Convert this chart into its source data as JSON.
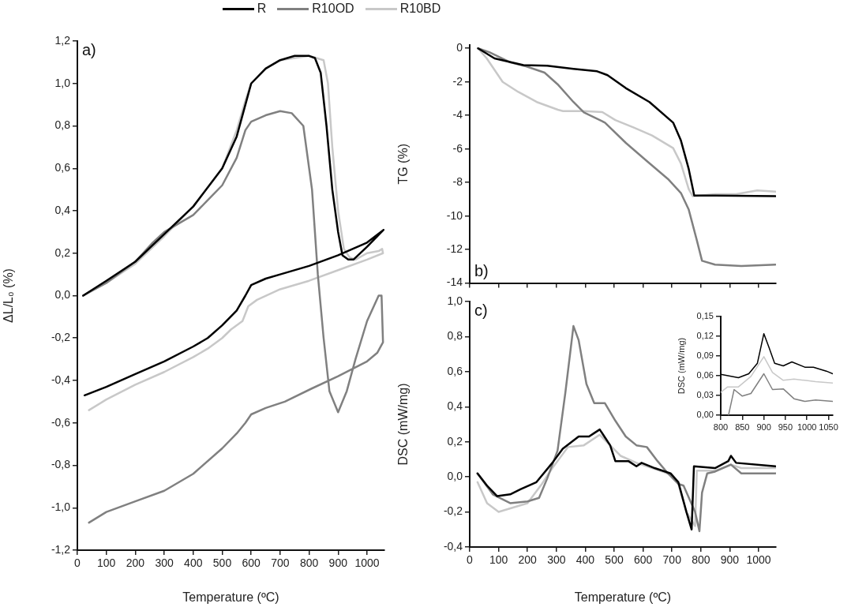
{
  "chart_data": [
    {
      "type": "line",
      "xlabel": "Temperature (ºC)",
      "ylabel": "ΔL/L₀ (%)",
      "legend": "top",
      "annotations": [
        "a)"
      ],
      "xlim": [
        0,
        1060
      ],
      "xticks": [
        0,
        100,
        200,
        300,
        400,
        500,
        600,
        700,
        800,
        900,
        1000
      ],
      "ylim": [
        -1.2,
        1.2
      ],
      "yticks": [
        {
          "value": -1.2,
          "label": "-1,2"
        },
        {
          "value": -1.0,
          "label": "-1,0"
        },
        {
          "value": -0.8,
          "label": "-0,8"
        },
        {
          "value": -0.6,
          "label": "-0,6"
        },
        {
          "value": -0.4,
          "label": "-0,4"
        },
        {
          "value": -0.2,
          "label": "-0,2"
        },
        {
          "value": 0,
          "label": "0,0"
        },
        {
          "value": 0.2,
          "label": "0,2"
        },
        {
          "value": 0.4,
          "label": "0,4"
        },
        {
          "value": 0.6,
          "label": "0,6"
        },
        {
          "value": 0.8,
          "label": "0,8"
        },
        {
          "value": 1.0,
          "label": "1,0"
        },
        {
          "value": 1.2,
          "label": "1,2"
        }
      ],
      "series": [
        {
          "name": "R",
          "color": "#000000",
          "x": [
            20,
            100,
            200,
            300,
            400,
            500,
            550,
            580,
            600,
            650,
            700,
            750,
            800,
            820,
            840,
            860,
            880,
            900,
            915,
            935,
            953,
            1000,
            1057,
            1000,
            900,
            800,
            700,
            650,
            600,
            580,
            550,
            500,
            450,
            400,
            300,
            200,
            100,
            25
          ],
          "values": [
            0,
            0.07,
            0.16,
            0.29,
            0.42,
            0.6,
            0.75,
            0.9,
            1.0,
            1.07,
            1.11,
            1.13,
            1.13,
            1.12,
            1.05,
            0.8,
            0.5,
            0.3,
            0.19,
            0.17,
            0.17,
            0.23,
            0.31,
            0.25,
            0.19,
            0.14,
            0.1,
            0.08,
            0.05,
            0.0,
            -0.07,
            -0.14,
            -0.2,
            -0.24,
            -0.31,
            -0.37,
            -0.43,
            -0.47
          ]
        },
        {
          "name": "R10OD",
          "color": "#808080",
          "x": [
            20,
            100,
            200,
            260,
            300,
            400,
            500,
            550,
            580,
            600,
            650,
            700,
            740,
            780,
            810,
            830,
            850,
            870,
            900,
            930,
            960,
            1000,
            1040,
            1050,
            1055,
            1035,
            1000,
            900,
            806,
            716,
            650,
            600,
            580,
            550,
            500,
            400,
            300,
            200,
            100,
            40
          ],
          "values": [
            0,
            0.06,
            0.16,
            0.25,
            0.3,
            0.38,
            0.52,
            0.65,
            0.78,
            0.82,
            0.85,
            0.87,
            0.86,
            0.8,
            0.5,
            0.1,
            -0.2,
            -0.45,
            -0.55,
            -0.45,
            -0.3,
            -0.12,
            0.0,
            0.0,
            -0.22,
            -0.27,
            -0.31,
            -0.38,
            -0.44,
            -0.5,
            -0.53,
            -0.56,
            -0.6,
            -0.65,
            -0.72,
            -0.84,
            -0.92,
            -0.97,
            -1.02,
            -1.07
          ]
        },
        {
          "name": "R10BD",
          "color": "#c8c8c8",
          "x": [
            20,
            100,
            200,
            300,
            400,
            500,
            550,
            580,
            600,
            650,
            700,
            750,
            800,
            850,
            865,
            880,
            900,
            920,
            940,
            960,
            1000,
            1040,
            1052,
            1055,
            1000,
            900,
            800,
            700,
            620,
            590,
            570,
            530,
            500,
            450,
            400,
            300,
            200,
            100,
            40
          ],
          "values": [
            0,
            0.06,
            0.15,
            0.28,
            0.42,
            0.6,
            0.78,
            0.92,
            1.0,
            1.07,
            1.11,
            1.12,
            1.13,
            1.11,
            1.0,
            0.7,
            0.4,
            0.22,
            0.18,
            0.17,
            0.2,
            0.21,
            0.22,
            0.2,
            0.17,
            0.12,
            0.07,
            0.03,
            -0.02,
            -0.05,
            -0.12,
            -0.16,
            -0.2,
            -0.25,
            -0.29,
            -0.36,
            -0.42,
            -0.49,
            -0.54
          ]
        }
      ]
    },
    {
      "type": "line",
      "ylabel": "TG (%)",
      "annotations": [
        "b)"
      ],
      "tick_labels": "y",
      "xlim": [
        0,
        1060
      ],
      "xticks": [
        0,
        100,
        200,
        300,
        400,
        500,
        600,
        700,
        800,
        900,
        1000
      ],
      "ylim": [
        -14,
        0.2
      ],
      "yticks": [
        -14,
        -12,
        -10,
        -8,
        -6,
        -4,
        -2,
        0
      ],
      "series": [
        {
          "color": "#000000",
          "x": [
            29,
            86,
            186,
            268,
            359,
            441,
            477,
            540,
            622,
            704,
            731,
            758,
            777,
            849,
            1058
          ],
          "values": [
            0,
            -0.6,
            -1.0,
            -1.04,
            -1.22,
            -1.37,
            -1.6,
            -2.37,
            -3.2,
            -4.43,
            -5.5,
            -7.2,
            -8.78,
            -8.78,
            -8.82
          ]
        },
        {
          "color": "#808080",
          "x": [
            29,
            68,
            141,
            195,
            259,
            304,
            359,
            395,
            468,
            541,
            613,
            686,
            731,
            758,
            786,
            804,
            849,
            940,
            1058
          ],
          "values": [
            0,
            -0.23,
            -0.84,
            -1.07,
            -1.45,
            -2.14,
            -3.2,
            -3.82,
            -4.43,
            -5.65,
            -6.72,
            -7.79,
            -8.63,
            -9.62,
            -11.45,
            -12.67,
            -12.9,
            -12.98,
            -12.9
          ]
        },
        {
          "color": "#c8c8c8",
          "x": [
            29,
            59,
            114,
            168,
            232,
            305,
            323,
            395,
            459,
            504,
            568,
            631,
            704,
            731,
            758,
            772,
            849,
            922,
            995,
            1058
          ],
          "values": [
            0,
            -0.6,
            -2.0,
            -2.6,
            -3.2,
            -3.66,
            -3.74,
            -3.74,
            -3.8,
            -4.28,
            -4.73,
            -5.2,
            -5.95,
            -6.87,
            -8.4,
            -8.82,
            -8.7,
            -8.7,
            -8.47,
            -8.55
          ]
        }
      ]
    },
    {
      "type": "line",
      "xlabel": "Temperature (ºC)",
      "ylabel": "DSC (mW/mg)",
      "annotations": [
        "c)"
      ],
      "xlim": [
        0,
        1060
      ],
      "xticks": [
        0,
        100,
        200,
        300,
        400,
        500,
        600,
        700,
        800,
        900,
        1000
      ],
      "ylim": [
        -0.4,
        1.0
      ],
      "yticks": [
        {
          "value": -0.4,
          "label": "-0,4"
        },
        {
          "value": -0.2,
          "label": "-0,2"
        },
        {
          "value": 0,
          "label": "0,0"
        },
        {
          "value": 0.2,
          "label": "0,2"
        },
        {
          "value": 0.4,
          "label": "0,4"
        },
        {
          "value": 0.6,
          "label": "0,6"
        },
        {
          "value": 0.8,
          "label": "0,8"
        },
        {
          "value": 1.0,
          "label": "1,0"
        }
      ],
      "series": [
        {
          "color": "#000000",
          "x": [
            27,
            60,
            95,
            140,
            177,
            231,
            286,
            322,
            377,
            413,
            431,
            450,
            486,
            504,
            549,
            577,
            595,
            640,
            695,
            722,
            750,
            768,
            776,
            849,
            895,
            904,
            922,
            1058
          ],
          "values": [
            0.02,
            -0.05,
            -0.11,
            -0.1,
            -0.07,
            -0.03,
            0.08,
            0.16,
            0.23,
            0.23,
            0.25,
            0.27,
            0.18,
            0.09,
            0.09,
            0.06,
            0.08,
            0.05,
            0.02,
            -0.03,
            -0.2,
            -0.3,
            0.06,
            0.05,
            0.09,
            0.12,
            0.08,
            0.06
          ]
        },
        {
          "color": "#808080",
          "x": [
            27,
            80,
            140,
            200,
            240,
            268,
            304,
            331,
            359,
            377,
            404,
            431,
            468,
            504,
            540,
            577,
            613,
            650,
            686,
            722,
            740,
            780,
            795,
            804,
            822,
            849,
            904,
            940,
            1058
          ],
          "values": [
            0.02,
            -0.1,
            -0.15,
            -0.14,
            -0.12,
            -0.01,
            0.15,
            0.48,
            0.86,
            0.78,
            0.53,
            0.42,
            0.42,
            0.32,
            0.23,
            0.18,
            0.17,
            0.09,
            0.02,
            -0.04,
            -0.05,
            -0.2,
            -0.31,
            -0.09,
            0.02,
            0.03,
            0.07,
            0.02,
            0.02
          ]
        },
        {
          "color": "#c8c8c8",
          "x": [
            27,
            60,
            100,
            200,
            250,
            286,
            340,
            395,
            450,
            486,
            522,
            577,
            668,
            695,
            722,
            750,
            780,
            786,
            849,
            904,
            940,
            1058
          ],
          "values": [
            -0.03,
            -0.15,
            -0.2,
            -0.15,
            -0.04,
            0.05,
            0.17,
            0.18,
            0.24,
            0.18,
            0.12,
            0.08,
            0.03,
            0.01,
            -0.04,
            -0.2,
            -0.28,
            0.035,
            0.035,
            0.07,
            0.05,
            0.05
          ]
        }
      ]
    },
    {
      "type": "line",
      "ylabel": "DSC (mW/mg)",
      "xlim": [
        800,
        1060
      ],
      "xticks": [
        800,
        850,
        900,
        950,
        1000,
        1050
      ],
      "ylim": [
        0,
        0.15
      ],
      "yticks": [
        {
          "value": 0,
          "label": "0,00"
        },
        {
          "value": 0.03,
          "label": "0,03"
        },
        {
          "value": 0.06,
          "label": "0,06"
        },
        {
          "value": 0.09,
          "label": "0,09"
        },
        {
          "value": 0.12,
          "label": "0,12"
        },
        {
          "value": 0.15,
          "label": "0,15"
        }
      ],
      "series": [
        {
          "color": "#000000",
          "x": [
            800,
            841,
            865,
            885,
            900,
            912,
            925,
            945,
            965,
            995,
            1015,
            1045,
            1060
          ],
          "values": [
            0.062,
            0.057,
            0.063,
            0.079,
            0.124,
            0.103,
            0.079,
            0.075,
            0.081,
            0.073,
            0.073,
            0.067,
            0.063
          ]
        },
        {
          "color": "#808080",
          "x": [
            818,
            831,
            850,
            870,
            900,
            920,
            945,
            970,
            995,
            1020,
            1060
          ],
          "values": [
            0,
            0.039,
            0.029,
            0.033,
            0.063,
            0.039,
            0.04,
            0.025,
            0.021,
            0.023,
            0.021
          ]
        },
        {
          "color": "#c8c8c8",
          "x": [
            800,
            816,
            841,
            870,
            900,
            920,
            945,
            970,
            995,
            1020,
            1060
          ],
          "values": [
            0.035,
            0.043,
            0.043,
            0.059,
            0.089,
            0.065,
            0.053,
            0.055,
            0.053,
            0.051,
            0.049
          ]
        }
      ]
    }
  ]
}
